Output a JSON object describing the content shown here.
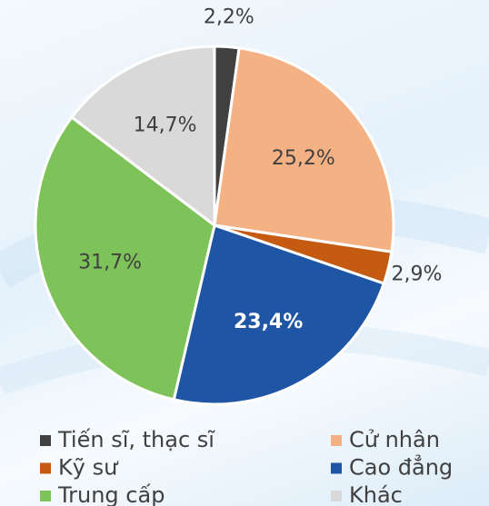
{
  "chart_data": {
    "type": "pie",
    "categories": [
      "Tiến sĩ, thạc sĩ",
      "Cử nhân",
      "Kỹ sư",
      "Cao đẳng",
      "Trung cấp",
      "Khác"
    ],
    "values": [
      2.2,
      25.2,
      2.9,
      23.4,
      31.7,
      14.7
    ],
    "value_labels": [
      "2,2%",
      "25,2%",
      "2,9%",
      "23,4%",
      "31,7%",
      "14,7%"
    ],
    "colors": [
      "#404040",
      "#f4b183",
      "#c55a11",
      "#1f55a5",
      "#7ec35a",
      "#d9d9d9"
    ],
    "legend": "bottom"
  }
}
